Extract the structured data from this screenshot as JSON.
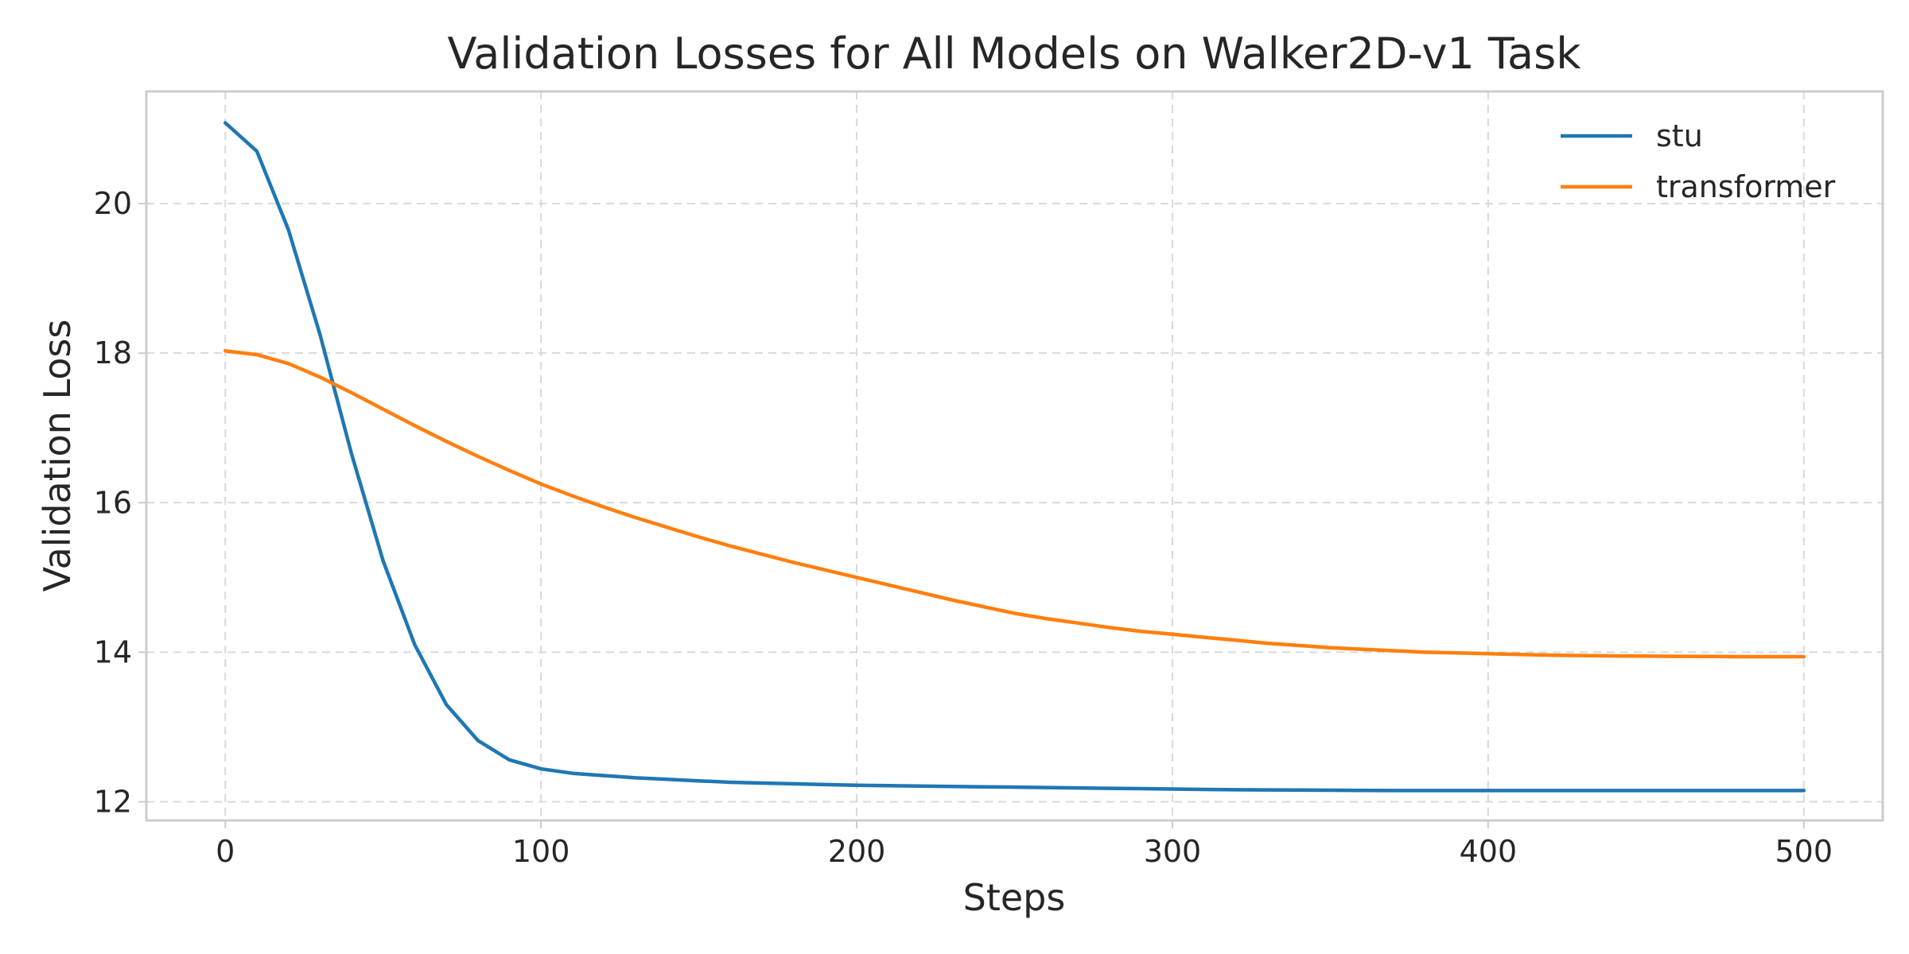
{
  "chart_data": {
    "type": "line",
    "title": "Validation Losses for All Models on Walker2D-v1 Task",
    "xlabel": "Steps",
    "ylabel": "Validation Loss",
    "xlim": [
      -25,
      525
    ],
    "ylim": [
      11.75,
      21.5
    ],
    "xticks": [
      0,
      100,
      200,
      300,
      400,
      500
    ],
    "yticks": [
      12,
      14,
      16,
      18,
      20
    ],
    "grid": true,
    "legend_position": "top-right",
    "x": [
      0,
      10,
      20,
      30,
      40,
      50,
      60,
      70,
      80,
      90,
      100,
      110,
      120,
      130,
      140,
      150,
      160,
      170,
      180,
      190,
      200,
      210,
      220,
      230,
      240,
      250,
      260,
      270,
      280,
      290,
      300,
      310,
      320,
      330,
      340,
      350,
      360,
      370,
      380,
      390,
      400,
      410,
      420,
      430,
      440,
      450,
      460,
      470,
      480,
      490,
      500
    ],
    "series": [
      {
        "name": "stu",
        "color": "#1f77b4",
        "values": [
          21.08,
          20.7,
          19.65,
          18.25,
          16.65,
          15.22,
          14.1,
          13.3,
          12.82,
          12.56,
          12.44,
          12.38,
          12.35,
          12.32,
          12.3,
          12.28,
          12.26,
          12.25,
          12.24,
          12.23,
          12.22,
          12.215,
          12.21,
          12.205,
          12.2,
          12.195,
          12.19,
          12.185,
          12.18,
          12.175,
          12.17,
          12.165,
          12.16,
          12.158,
          12.156,
          12.154,
          12.152,
          12.15,
          12.15,
          12.15,
          12.15,
          12.15,
          12.15,
          12.15,
          12.15,
          12.15,
          12.15,
          12.15,
          12.15,
          12.15,
          12.15
        ]
      },
      {
        "name": "transformer",
        "color": "#ff7f0e",
        "values": [
          18.03,
          17.98,
          17.86,
          17.68,
          17.47,
          17.25,
          17.03,
          16.82,
          16.62,
          16.43,
          16.25,
          16.09,
          15.94,
          15.8,
          15.67,
          15.54,
          15.42,
          15.31,
          15.2,
          15.1,
          15.0,
          14.9,
          14.8,
          14.7,
          14.61,
          14.52,
          14.45,
          14.39,
          14.33,
          14.28,
          14.24,
          14.2,
          14.16,
          14.12,
          14.09,
          14.06,
          14.04,
          14.02,
          14.0,
          13.99,
          13.98,
          13.97,
          13.96,
          13.955,
          13.95,
          13.948,
          13.945,
          13.943,
          13.94,
          13.94,
          13.94
        ]
      }
    ]
  }
}
